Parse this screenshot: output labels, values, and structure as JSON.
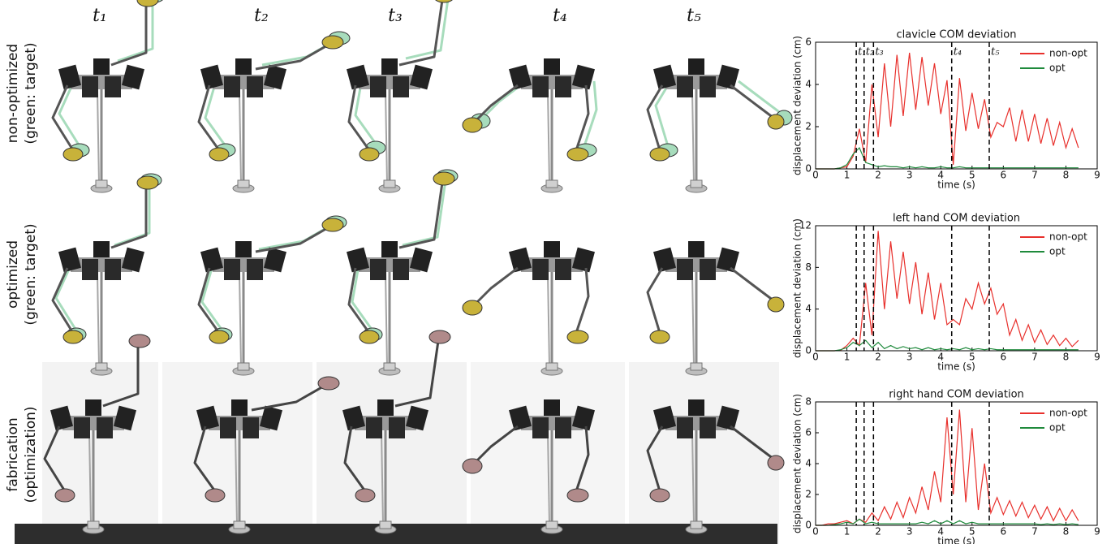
{
  "figure": {
    "columns": [
      "t₁",
      "t₂",
      "t₃",
      "t₄",
      "t₅"
    ],
    "row_labels": [
      [
        "non-optimized",
        "(green: target)"
      ],
      [
        "optimized",
        "(green: target)"
      ],
      [
        "fabrication",
        "(optimization)"
      ]
    ]
  },
  "chart_data": [
    {
      "type": "line",
      "title": "clavicle COM deviation",
      "xlabel": "time (s)",
      "ylabel": "displacement deviation (cm)",
      "xlim": [
        0,
        9
      ],
      "xticks": [
        0,
        1,
        2,
        3,
        4,
        5,
        6,
        7,
        8,
        9
      ],
      "ylim": [
        0,
        6
      ],
      "yticks": [
        0,
        2,
        4,
        6
      ],
      "legend": "upper right",
      "vlines": [
        1.3,
        1.55,
        1.85,
        4.35,
        5.55
      ],
      "vline_labels": [
        "t₁",
        "t₂",
        "t₃",
        "t₄",
        "t₅"
      ],
      "x": [
        0,
        0.2,
        0.4,
        0.6,
        0.8,
        1,
        1.2,
        1.4,
        1.6,
        1.8,
        2,
        2.2,
        2.4,
        2.6,
        2.8,
        3,
        3.2,
        3.4,
        3.6,
        3.8,
        4,
        4.2,
        4.4,
        4.6,
        4.8,
        5,
        5.2,
        5.4,
        5.6,
        5.8,
        6,
        6.2,
        6.4,
        6.6,
        6.8,
        7,
        7.2,
        7.4,
        7.6,
        7.8,
        8,
        8.2,
        8.4
      ],
      "series": [
        {
          "name": "non-opt",
          "color": "#e8302c",
          "values": [
            0,
            0,
            0,
            0,
            0.05,
            0.1,
            0.6,
            1.9,
            0.3,
            4.0,
            1.5,
            5.0,
            2.0,
            5.4,
            2.5,
            5.5,
            2.8,
            5.3,
            3.0,
            5.0,
            2.6,
            4.2,
            0.2,
            4.3,
            1.8,
            3.6,
            1.9,
            3.3,
            1.5,
            2.2,
            2.0,
            2.9,
            1.3,
            2.8,
            1.3,
            2.6,
            1.2,
            2.4,
            1.1,
            2.2,
            1.0,
            1.9,
            1.0
          ]
        },
        {
          "name": "opt",
          "color": "#1f8a3c",
          "values": [
            0,
            0,
            0,
            0,
            0.05,
            0.2,
            0.7,
            1.0,
            0.3,
            0.2,
            0.1,
            0.15,
            0.1,
            0.1,
            0.05,
            0.1,
            0.05,
            0.1,
            0.05,
            0.05,
            0.1,
            0.05,
            0.05,
            0.1,
            0.05,
            0.05,
            0.05,
            0.05,
            0.05,
            0.05,
            0.05,
            0.05,
            0.05,
            0.05,
            0.05,
            0.05,
            0.05,
            0.05,
            0.05,
            0.05,
            0.05,
            0.05,
            0.05
          ]
        }
      ]
    },
    {
      "type": "line",
      "title": "left hand COM deviation",
      "xlabel": "time (s)",
      "ylabel": "displacement deviation (cm)",
      "xlim": [
        0,
        9
      ],
      "xticks": [
        0,
        1,
        2,
        3,
        4,
        5,
        6,
        7,
        8,
        9
      ],
      "ylim": [
        0,
        12
      ],
      "yticks": [
        0,
        4,
        8,
        12
      ],
      "legend": "upper right",
      "vlines": [
        1.3,
        1.55,
        1.85,
        4.35,
        5.55
      ],
      "x": [
        0,
        0.2,
        0.4,
        0.6,
        0.8,
        1,
        1.2,
        1.4,
        1.6,
        1.8,
        2,
        2.2,
        2.4,
        2.6,
        2.8,
        3,
        3.2,
        3.4,
        3.6,
        3.8,
        4,
        4.2,
        4.4,
        4.6,
        4.8,
        5,
        5.2,
        5.4,
        5.6,
        5.8,
        6,
        6.2,
        6.4,
        6.6,
        6.8,
        7,
        7.2,
        7.4,
        7.6,
        7.8,
        8,
        8.2,
        8.4
      ],
      "series": [
        {
          "name": "non-opt",
          "color": "#e8302c",
          "values": [
            0,
            0,
            0,
            0,
            0.05,
            0.5,
            1.2,
            0.5,
            6.5,
            1.5,
            11.5,
            4,
            10.5,
            5,
            9.5,
            4.5,
            8.5,
            3.5,
            7.5,
            3,
            6.5,
            2.5,
            3,
            2.5,
            5,
            4,
            6.5,
            4.5,
            6,
            3.5,
            4.5,
            1.5,
            3,
            1,
            2.5,
            0.8,
            2,
            0.6,
            1.5,
            0.5,
            1.2,
            0.4,
            1
          ]
        },
        {
          "name": "opt",
          "color": "#1f8a3c",
          "values": [
            0,
            0,
            0,
            0,
            0.1,
            0.3,
            0.8,
            0.5,
            1.0,
            0.3,
            0.8,
            0.2,
            0.5,
            0.2,
            0.4,
            0.2,
            0.3,
            0.1,
            0.3,
            0.1,
            0.2,
            0.1,
            0.2,
            0.1,
            0.3,
            0.1,
            0.2,
            0.1,
            0.2,
            0.1,
            0.1,
            0.1,
            0.1,
            0.1,
            0.1,
            0.1,
            0.1,
            0.1,
            0.1,
            0.1,
            0.1,
            0.1,
            0.1
          ]
        }
      ]
    },
    {
      "type": "line",
      "title": "right hand COM deviation",
      "xlabel": "time (s)",
      "ylabel": "displacement deviation (cm)",
      "xlim": [
        0,
        9
      ],
      "xticks": [
        0,
        1,
        2,
        3,
        4,
        5,
        6,
        7,
        8,
        9
      ],
      "ylim": [
        0,
        8
      ],
      "yticks": [
        0,
        2,
        4,
        6,
        8
      ],
      "legend": "upper right",
      "vlines": [
        1.3,
        1.55,
        1.85,
        4.35,
        5.55
      ],
      "x": [
        0,
        0.2,
        0.4,
        0.6,
        0.8,
        1,
        1.2,
        1.4,
        1.6,
        1.8,
        2,
        2.2,
        2.4,
        2.6,
        2.8,
        3,
        3.2,
        3.4,
        3.6,
        3.8,
        4,
        4.2,
        4.4,
        4.6,
        4.8,
        5,
        5.2,
        5.4,
        5.6,
        5.8,
        6,
        6.2,
        6.4,
        6.6,
        6.8,
        7,
        7.2,
        7.4,
        7.6,
        7.8,
        8,
        8.2,
        8.4
      ],
      "series": [
        {
          "name": "non-opt",
          "color": "#e8302c",
          "values": [
            0,
            0,
            0.1,
            0.1,
            0.2,
            0.3,
            0.1,
            0.4,
            0.2,
            0.8,
            0.3,
            1.2,
            0.4,
            1.5,
            0.5,
            1.8,
            0.8,
            2.5,
            1,
            3.5,
            1.5,
            7,
            2,
            7.5,
            1.5,
            6.3,
            1,
            4,
            0.8,
            1.8,
            0.7,
            1.6,
            0.6,
            1.5,
            0.5,
            1.3,
            0.4,
            1.2,
            0.3,
            1.1,
            0.3,
            1,
            0.3
          ]
        },
        {
          "name": "opt",
          "color": "#1f8a3c",
          "values": [
            0,
            0,
            0,
            0.05,
            0.1,
            0.2,
            0.1,
            0.4,
            0.1,
            0.2,
            0.1,
            0.1,
            0.1,
            0.1,
            0.1,
            0.1,
            0.1,
            0.2,
            0.1,
            0.3,
            0.1,
            0.3,
            0.1,
            0.3,
            0.1,
            0.2,
            0.1,
            0.1,
            0.1,
            0.1,
            0.1,
            0.1,
            0.1,
            0.1,
            0.1,
            0.1,
            0.05,
            0.1,
            0.05,
            0.1,
            0.05,
            0.1,
            0.05
          ]
        }
      ]
    }
  ]
}
